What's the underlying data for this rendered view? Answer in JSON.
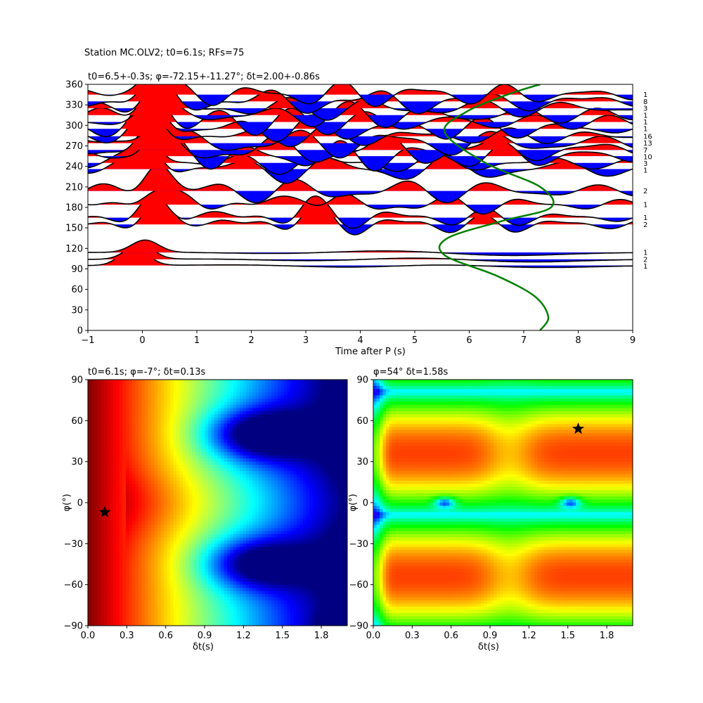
{
  "figure": {
    "suptitle": "Station MC.OLV2; t0=6.1s; RFs=75"
  },
  "chart_data": [
    {
      "type": "line",
      "panel": "receiver-function-stack",
      "title": "t0=6.5+-0.3s; φ=-72.15+-11.27°; δt=2.00+-0.86s",
      "xlabel": "Time after P (s)",
      "ylabel": "",
      "xlim": [
        -1,
        9
      ],
      "ylim": [
        0,
        360
      ],
      "xticks": [
        "−1",
        "0",
        "1",
        "2",
        "3",
        "4",
        "5",
        "6",
        "7",
        "8",
        "9"
      ],
      "yticks": [
        "0",
        "30",
        "60",
        "90",
        "120",
        "150",
        "180",
        "210",
        "240",
        "270",
        "300",
        "330",
        "360"
      ],
      "positive_fill": "#ff0000",
      "negative_fill": "#0000ff",
      "trace_color": "#000000",
      "model_curve_color": "#008000",
      "traces": [
        {
          "baz": 95,
          "count": "1"
        },
        {
          "baz": 104,
          "count": "2"
        },
        {
          "baz": 114,
          "count": "1"
        },
        {
          "baz": 155,
          "count": "2"
        },
        {
          "baz": 165,
          "count": "1"
        },
        {
          "baz": 184,
          "count": "1"
        },
        {
          "baz": 204,
          "count": "2"
        },
        {
          "baz": 236,
          "count": "1"
        },
        {
          "baz": 245,
          "count": "3"
        },
        {
          "baz": 255,
          "count": "10"
        },
        {
          "baz": 264,
          "count": "7"
        },
        {
          "baz": 274,
          "count": "13"
        },
        {
          "baz": 284,
          "count": "16"
        },
        {
          "baz": 295,
          "count": "1"
        },
        {
          "baz": 305,
          "count": "1"
        },
        {
          "baz": 315,
          "count": "1"
        },
        {
          "baz": 325,
          "count": "3"
        },
        {
          "baz": 335,
          "count": "8"
        },
        {
          "baz": 345,
          "count": "1"
        }
      ],
      "model_curve": {
        "description": "",
        "points": [
          [
            7.3,
            0
          ],
          [
            7.45,
            20
          ],
          [
            7.2,
            50
          ],
          [
            6.5,
            80
          ],
          [
            5.55,
            110
          ],
          [
            5.6,
            135
          ],
          [
            6.6,
            160
          ],
          [
            7.5,
            180
          ],
          [
            7.3,
            210
          ],
          [
            6.3,
            245
          ],
          [
            5.55,
            290
          ],
          [
            5.95,
            320
          ],
          [
            6.7,
            345
          ],
          [
            7.3,
            360
          ]
        ]
      }
    },
    {
      "type": "heatmap",
      "panel": "energy-grid-left",
      "title": "t0=6.1s; φ=-7°; δt=0.13s",
      "xlabel": "δt(s)",
      "ylabel": "φ(°)",
      "xlim": [
        0,
        2
      ],
      "ylim": [
        -90,
        90
      ],
      "xticks": [
        "0.0",
        "0.3",
        "0.6",
        "0.9",
        "1.2",
        "1.5",
        "1.8"
      ],
      "yticks": [
        "−90",
        "−60",
        "−30",
        "0",
        "30",
        "60",
        "90"
      ],
      "colormap": "jet",
      "best": {
        "dt": 0.13,
        "phi": -7
      }
    },
    {
      "type": "heatmap",
      "panel": "energy-grid-right",
      "title": "φ=54° δt=1.58s",
      "xlabel": "δt(s)",
      "ylabel": "φ(°)",
      "xlim": [
        0,
        2
      ],
      "ylim": [
        -90,
        90
      ],
      "xticks": [
        "0.0",
        "0.3",
        "0.6",
        "0.9",
        "1.2",
        "1.5",
        "1.8"
      ],
      "yticks": [
        "−90",
        "−60",
        "−30",
        "0",
        "30",
        "60",
        "90"
      ],
      "colormap": "hsv",
      "best": {
        "dt": 1.58,
        "phi": 54
      }
    }
  ]
}
